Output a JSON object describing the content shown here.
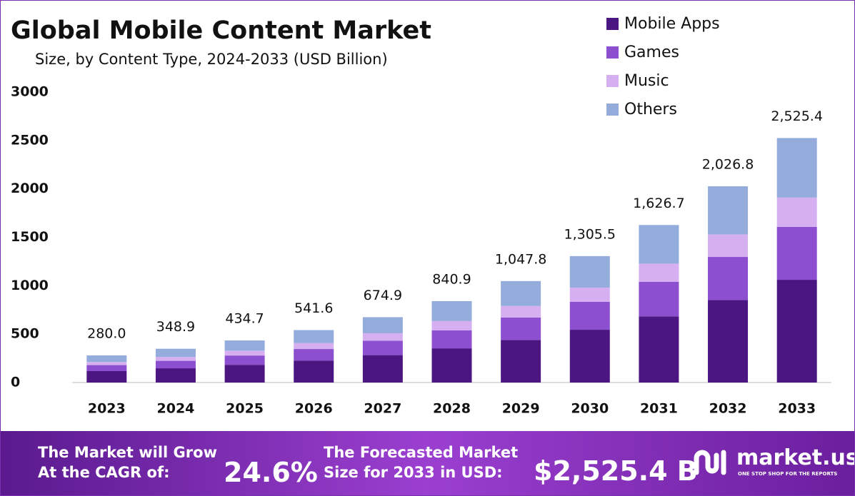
{
  "chart_data": {
    "type": "stacked_bar",
    "title": "Global Mobile Content Market",
    "subtitle": "Size, by Content Type, 2024-2033 (USD Billion)",
    "categories": [
      "2023",
      "2024",
      "2025",
      "2026",
      "2027",
      "2028",
      "2029",
      "2030",
      "2031",
      "2032",
      "2033"
    ],
    "series": [
      {
        "name": "Mobile Apps",
        "color": "#4b1682",
        "values": [
          118,
          147,
          183,
          227,
          283,
          353,
          440,
          545,
          683,
          851,
          1061
        ]
      },
      {
        "name": "Games",
        "color": "#8b4fcf",
        "values": [
          62,
          77,
          96,
          119,
          148,
          185,
          231,
          288,
          358,
          446,
          547
        ]
      },
      {
        "name": "Music",
        "color": "#d5aff0",
        "values": [
          32,
          40,
          50,
          62,
          78,
          97,
          120,
          147,
          187,
          233,
          302
        ]
      },
      {
        "name": "Others",
        "color": "#93acdc",
        "values": [
          68,
          84.9,
          105.7,
          133.6,
          165.9,
          205.9,
          256.8,
          325.5,
          398.7,
          496.8,
          615.4
        ]
      }
    ],
    "totals": {
      "values": [
        280.0,
        348.9,
        434.7,
        541.6,
        674.9,
        840.9,
        1047.8,
        1305.5,
        1626.7,
        2026.8,
        2525.4
      ],
      "value_labels": [
        "280.0",
        "348.9",
        "434.7",
        "541.6",
        "674.9",
        "840.9",
        "1,047.8",
        "1,305.5",
        "1,626.7",
        "2,026.8",
        "2,525.4"
      ]
    },
    "ylim": [
      0,
      3000
    ],
    "yticks": [
      0,
      500,
      1000,
      1500,
      2000,
      2500,
      3000
    ],
    "grid": false,
    "legend": "top-right"
  },
  "footer": {
    "cagr_text_1": "The Market will Grow",
    "cagr_text_2": "At the CAGR of:",
    "cagr_value": "24.6%",
    "forecast_text_1": "The Forecasted Market",
    "forecast_text_2": "Size for 2033 in USD:",
    "forecast_value": "$2,525.4 B",
    "brand": "market.us",
    "tagline": "ONE STOP SHOP FOR THE REPORTS"
  }
}
